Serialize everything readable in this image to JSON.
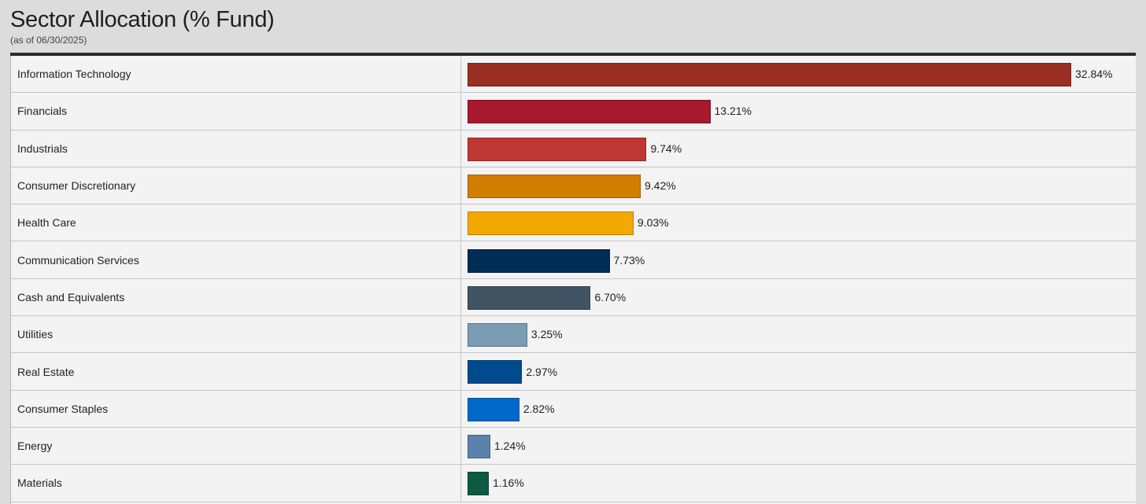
{
  "header": {
    "title": "Sector Allocation (% Fund)",
    "subtitle": "(as of 06/30/2025)"
  },
  "chart_data": {
    "type": "bar",
    "orientation": "horizontal",
    "title": "Sector Allocation (% Fund)",
    "subtitle": "(as of 06/30/2025)",
    "xlim": [
      0,
      32.84
    ],
    "categories": [
      "Information Technology",
      "Financials",
      "Industrials",
      "Consumer Discretionary",
      "Health Care",
      "Communication Services",
      "Cash and Equivalents",
      "Utilities",
      "Real Estate",
      "Consumer Staples",
      "Energy",
      "Materials"
    ],
    "values": [
      32.84,
      13.21,
      9.74,
      9.42,
      9.03,
      7.73,
      6.7,
      3.25,
      2.97,
      2.82,
      1.24,
      1.16
    ],
    "labels": [
      "32.84%",
      "13.21%",
      "9.74%",
      "9.42%",
      "9.03%",
      "7.73%",
      "6.70%",
      "3.25%",
      "2.97%",
      "2.82%",
      "1.24%",
      "1.16%"
    ],
    "colors": [
      "#9b2f24",
      "#a6192e",
      "#c03734",
      "#d17e00",
      "#f3a800",
      "#002d56",
      "#415464",
      "#7b9cb2",
      "#004b8d",
      "#0068c9",
      "#5b82ad",
      "#0c5a42"
    ]
  }
}
